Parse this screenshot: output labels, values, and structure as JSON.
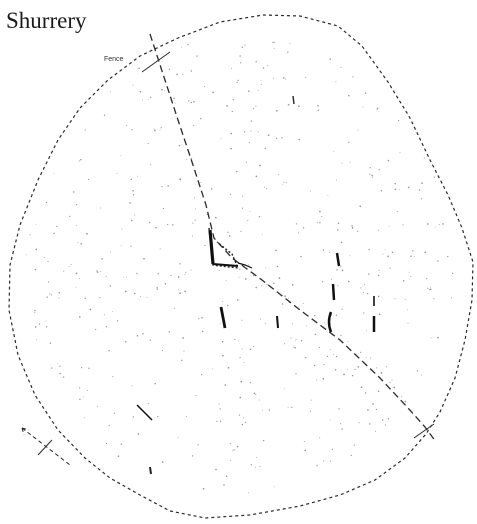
{
  "map": {
    "title": "Shurrery",
    "labels": {
      "fence": "Fence"
    },
    "colors": {
      "ink": "#1a1a1a",
      "boundary": "#2a2a2a",
      "stipple": "#9a9a9a",
      "background": "#ffffff"
    }
  }
}
